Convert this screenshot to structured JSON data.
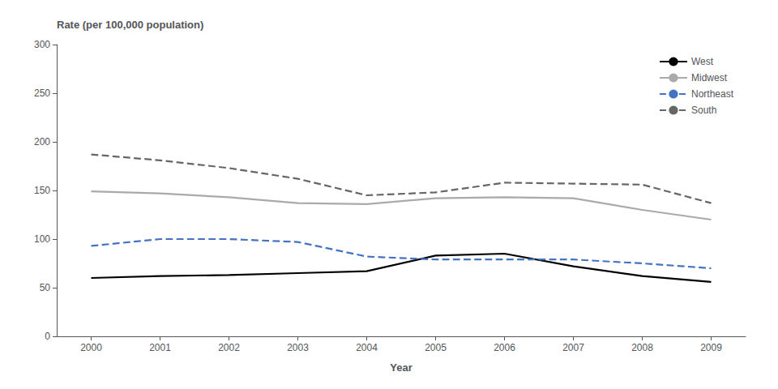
{
  "chart_data": {
    "type": "line",
    "ylabel": "Rate (per 100,000 population)",
    "xlabel": "Year",
    "x": [
      2000,
      2001,
      2002,
      2003,
      2004,
      2005,
      2006,
      2007,
      2008,
      2009
    ],
    "series": [
      {
        "name": "West",
        "color": "#000000",
        "line_style": "solid",
        "values": [
          60,
          62,
          63,
          65,
          67,
          83,
          85,
          72,
          62,
          56
        ]
      },
      {
        "name": "Midwest",
        "color": "#aaaaaa",
        "line_style": "solid",
        "values": [
          149,
          147,
          143,
          137,
          136,
          142,
          143,
          142,
          130,
          120
        ]
      },
      {
        "name": "Northeast",
        "color": "#4472c4",
        "line_style": "dashed",
        "values": [
          93,
          100,
          100,
          97,
          82,
          79,
          79,
          79,
          75,
          70
        ]
      },
      {
        "name": "South",
        "color": "#666666",
        "line_style": "dashed",
        "values": [
          187,
          181,
          173,
          162,
          145,
          148,
          158,
          157,
          156,
          137
        ]
      }
    ],
    "xlim": [
      1999.5,
      2009.5
    ],
    "xticks": [
      2000,
      2001,
      2002,
      2003,
      2004,
      2005,
      2006,
      2007,
      2008,
      2009
    ],
    "ylim": [
      0,
      300
    ],
    "yticks": [
      0,
      50,
      100,
      150,
      200,
      250,
      300
    ],
    "grid": false,
    "legend": "upper right"
  }
}
